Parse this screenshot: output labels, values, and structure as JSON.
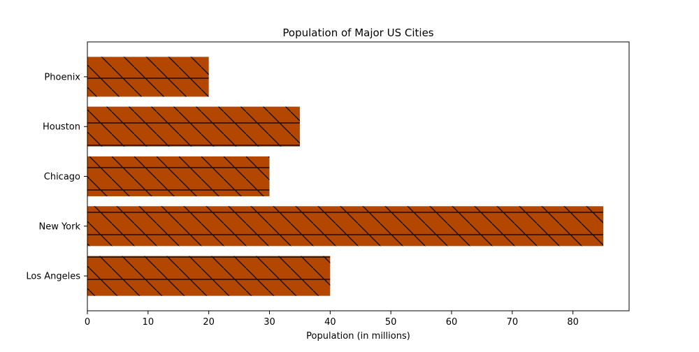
{
  "chart_data": {
    "type": "bar",
    "orientation": "horizontal",
    "title": "Population of Major US Cities",
    "xlabel": "Population (in millions)",
    "ylabel": "",
    "categories": [
      "Los Angeles",
      "New York",
      "Chicago",
      "Houston",
      "Phoenix"
    ],
    "values": [
      40,
      85,
      30,
      35,
      20
    ],
    "xlim": [
      0,
      89.25
    ],
    "xticks": [
      "0",
      "10",
      "20",
      "30",
      "40",
      "50",
      "60",
      "70",
      "80"
    ],
    "grid": false,
    "legend": "none",
    "colors": {
      "bar_fill": "#b34700",
      "hatch": "#000000",
      "axis": "#000000",
      "background": "#ffffff"
    }
  }
}
